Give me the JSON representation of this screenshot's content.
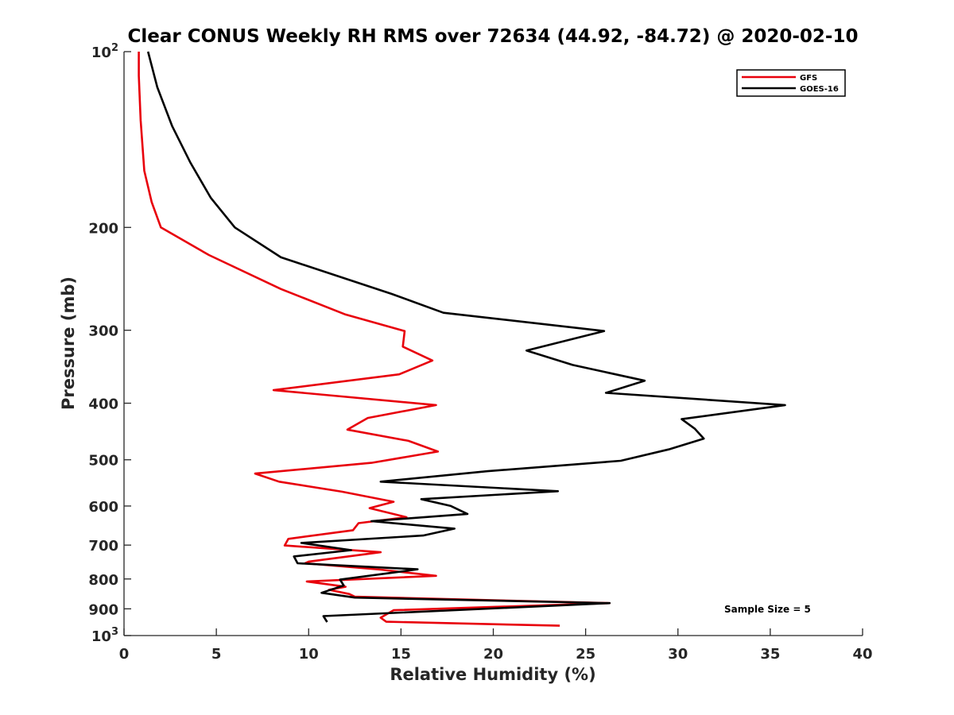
{
  "chart_data": {
    "type": "line",
    "title": "Clear CONUS Weekly RH RMS over 72634 (44.92, -84.72) @ 2020-02-10",
    "xlabel": "Relative Humidity (%)",
    "ylabel": "Pressure (mb)",
    "xlim": [
      0,
      40
    ],
    "ylim": [
      100,
      1000
    ],
    "yscale": "log",
    "yreversed": true,
    "grid": false,
    "legend_position": "top-right",
    "x_ticks": [
      {
        "value": 0,
        "label": "0"
      },
      {
        "value": 5,
        "label": "5"
      },
      {
        "value": 10,
        "label": "10"
      },
      {
        "value": 15,
        "label": "15"
      },
      {
        "value": 20,
        "label": "20"
      },
      {
        "value": 25,
        "label": "25"
      },
      {
        "value": 30,
        "label": "30"
      },
      {
        "value": 35,
        "label": "35"
      },
      {
        "value": 40,
        "label": "40"
      }
    ],
    "y_ticks": [
      {
        "value": 100,
        "base": "10",
        "exp": "2"
      },
      {
        "value": 200,
        "label": "200"
      },
      {
        "value": 300,
        "label": "300"
      },
      {
        "value": 400,
        "label": "400"
      },
      {
        "value": 500,
        "label": "500"
      },
      {
        "value": 600,
        "label": "600"
      },
      {
        "value": 700,
        "label": "700"
      },
      {
        "value": 800,
        "label": "800"
      },
      {
        "value": 900,
        "label": "900"
      },
      {
        "value": 1000,
        "base": "10",
        "exp": "3"
      }
    ],
    "series": [
      {
        "name": "GFS",
        "color": "#e8000b",
        "points": [
          [
            0.8,
            100
          ],
          [
            0.8,
            110
          ],
          [
            0.9,
            131
          ],
          [
            1.1,
            160
          ],
          [
            1.5,
            181
          ],
          [
            2.0,
            200
          ],
          [
            4.6,
            223
          ],
          [
            8.5,
            255
          ],
          [
            12.0,
            282
          ],
          [
            15.2,
            301
          ],
          [
            15.1,
            320
          ],
          [
            16.7,
            338
          ],
          [
            14.9,
            357
          ],
          [
            8.1,
            380
          ],
          [
            16.9,
            403
          ],
          [
            13.2,
            424
          ],
          [
            12.1,
            444
          ],
          [
            15.4,
            464
          ],
          [
            17.0,
            484
          ],
          [
            13.4,
            506
          ],
          [
            7.1,
            528
          ],
          [
            8.4,
            545
          ],
          [
            11.8,
            567
          ],
          [
            14.6,
            590
          ],
          [
            13.3,
            605
          ],
          [
            15.3,
            627
          ],
          [
            12.7,
            642
          ],
          [
            12.4,
            660
          ],
          [
            8.9,
            683
          ],
          [
            8.7,
            701
          ],
          [
            13.9,
            720
          ],
          [
            10.0,
            747
          ],
          [
            9.8,
            752
          ],
          [
            13.9,
            771
          ],
          [
            16.9,
            790
          ],
          [
            9.9,
            808
          ],
          [
            12.0,
            825
          ],
          [
            11.1,
            835
          ],
          [
            12.2,
            849
          ],
          [
            12.5,
            858
          ],
          [
            26.3,
            880
          ],
          [
            14.6,
            905
          ],
          [
            13.9,
            932
          ],
          [
            14.2,
            947
          ],
          [
            23.6,
            962
          ]
        ]
      },
      {
        "name": "GOES-16",
        "color": "#000000",
        "points": [
          [
            1.3,
            100
          ],
          [
            1.8,
            115
          ],
          [
            2.6,
            134
          ],
          [
            3.6,
            155
          ],
          [
            4.7,
            178
          ],
          [
            6.0,
            200
          ],
          [
            8.5,
            225
          ],
          [
            14.5,
            260
          ],
          [
            17.3,
            280
          ],
          [
            26.0,
            301
          ],
          [
            21.8,
            325
          ],
          [
            24.3,
            344
          ],
          [
            28.2,
            366
          ],
          [
            26.1,
            384
          ],
          [
            35.8,
            403
          ],
          [
            30.2,
            426
          ],
          [
            30.9,
            442
          ],
          [
            31.4,
            460
          ],
          [
            29.5,
            480
          ],
          [
            26.9,
            502
          ],
          [
            19.7,
            523
          ],
          [
            13.9,
            545
          ],
          [
            23.5,
            566
          ],
          [
            16.1,
            584
          ],
          [
            17.7,
            600
          ],
          [
            18.6,
            619
          ],
          [
            13.4,
            637
          ],
          [
            17.9,
            656
          ],
          [
            16.2,
            674
          ],
          [
            9.6,
            694
          ],
          [
            12.3,
            714
          ],
          [
            9.2,
            732
          ],
          [
            9.4,
            752
          ],
          [
            15.9,
            770
          ],
          [
            11.7,
            802
          ],
          [
            11.9,
            821
          ],
          [
            10.7,
            845
          ],
          [
            12.5,
            861
          ],
          [
            26.3,
            880
          ],
          [
            10.8,
            926
          ],
          [
            11.0,
            948
          ]
        ]
      }
    ],
    "annotations": [
      "Sample Size = 5"
    ]
  }
}
